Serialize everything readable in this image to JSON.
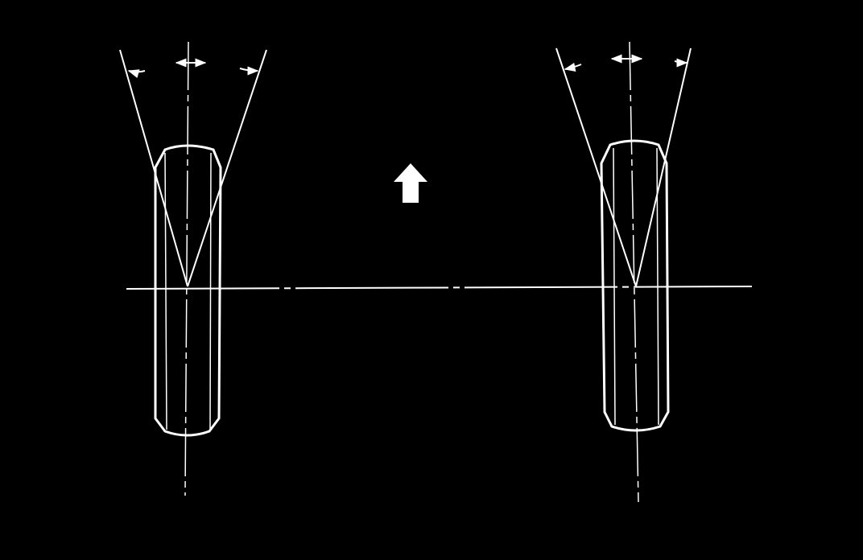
{
  "diagram": {
    "background": "#000000",
    "stroke": "#ffffff",
    "wheels": [
      {
        "id": "left-wheel"
      },
      {
        "id": "right-wheel"
      }
    ],
    "direction_arrow": {
      "icon": "up-arrow-icon",
      "meaning": "forward"
    }
  }
}
